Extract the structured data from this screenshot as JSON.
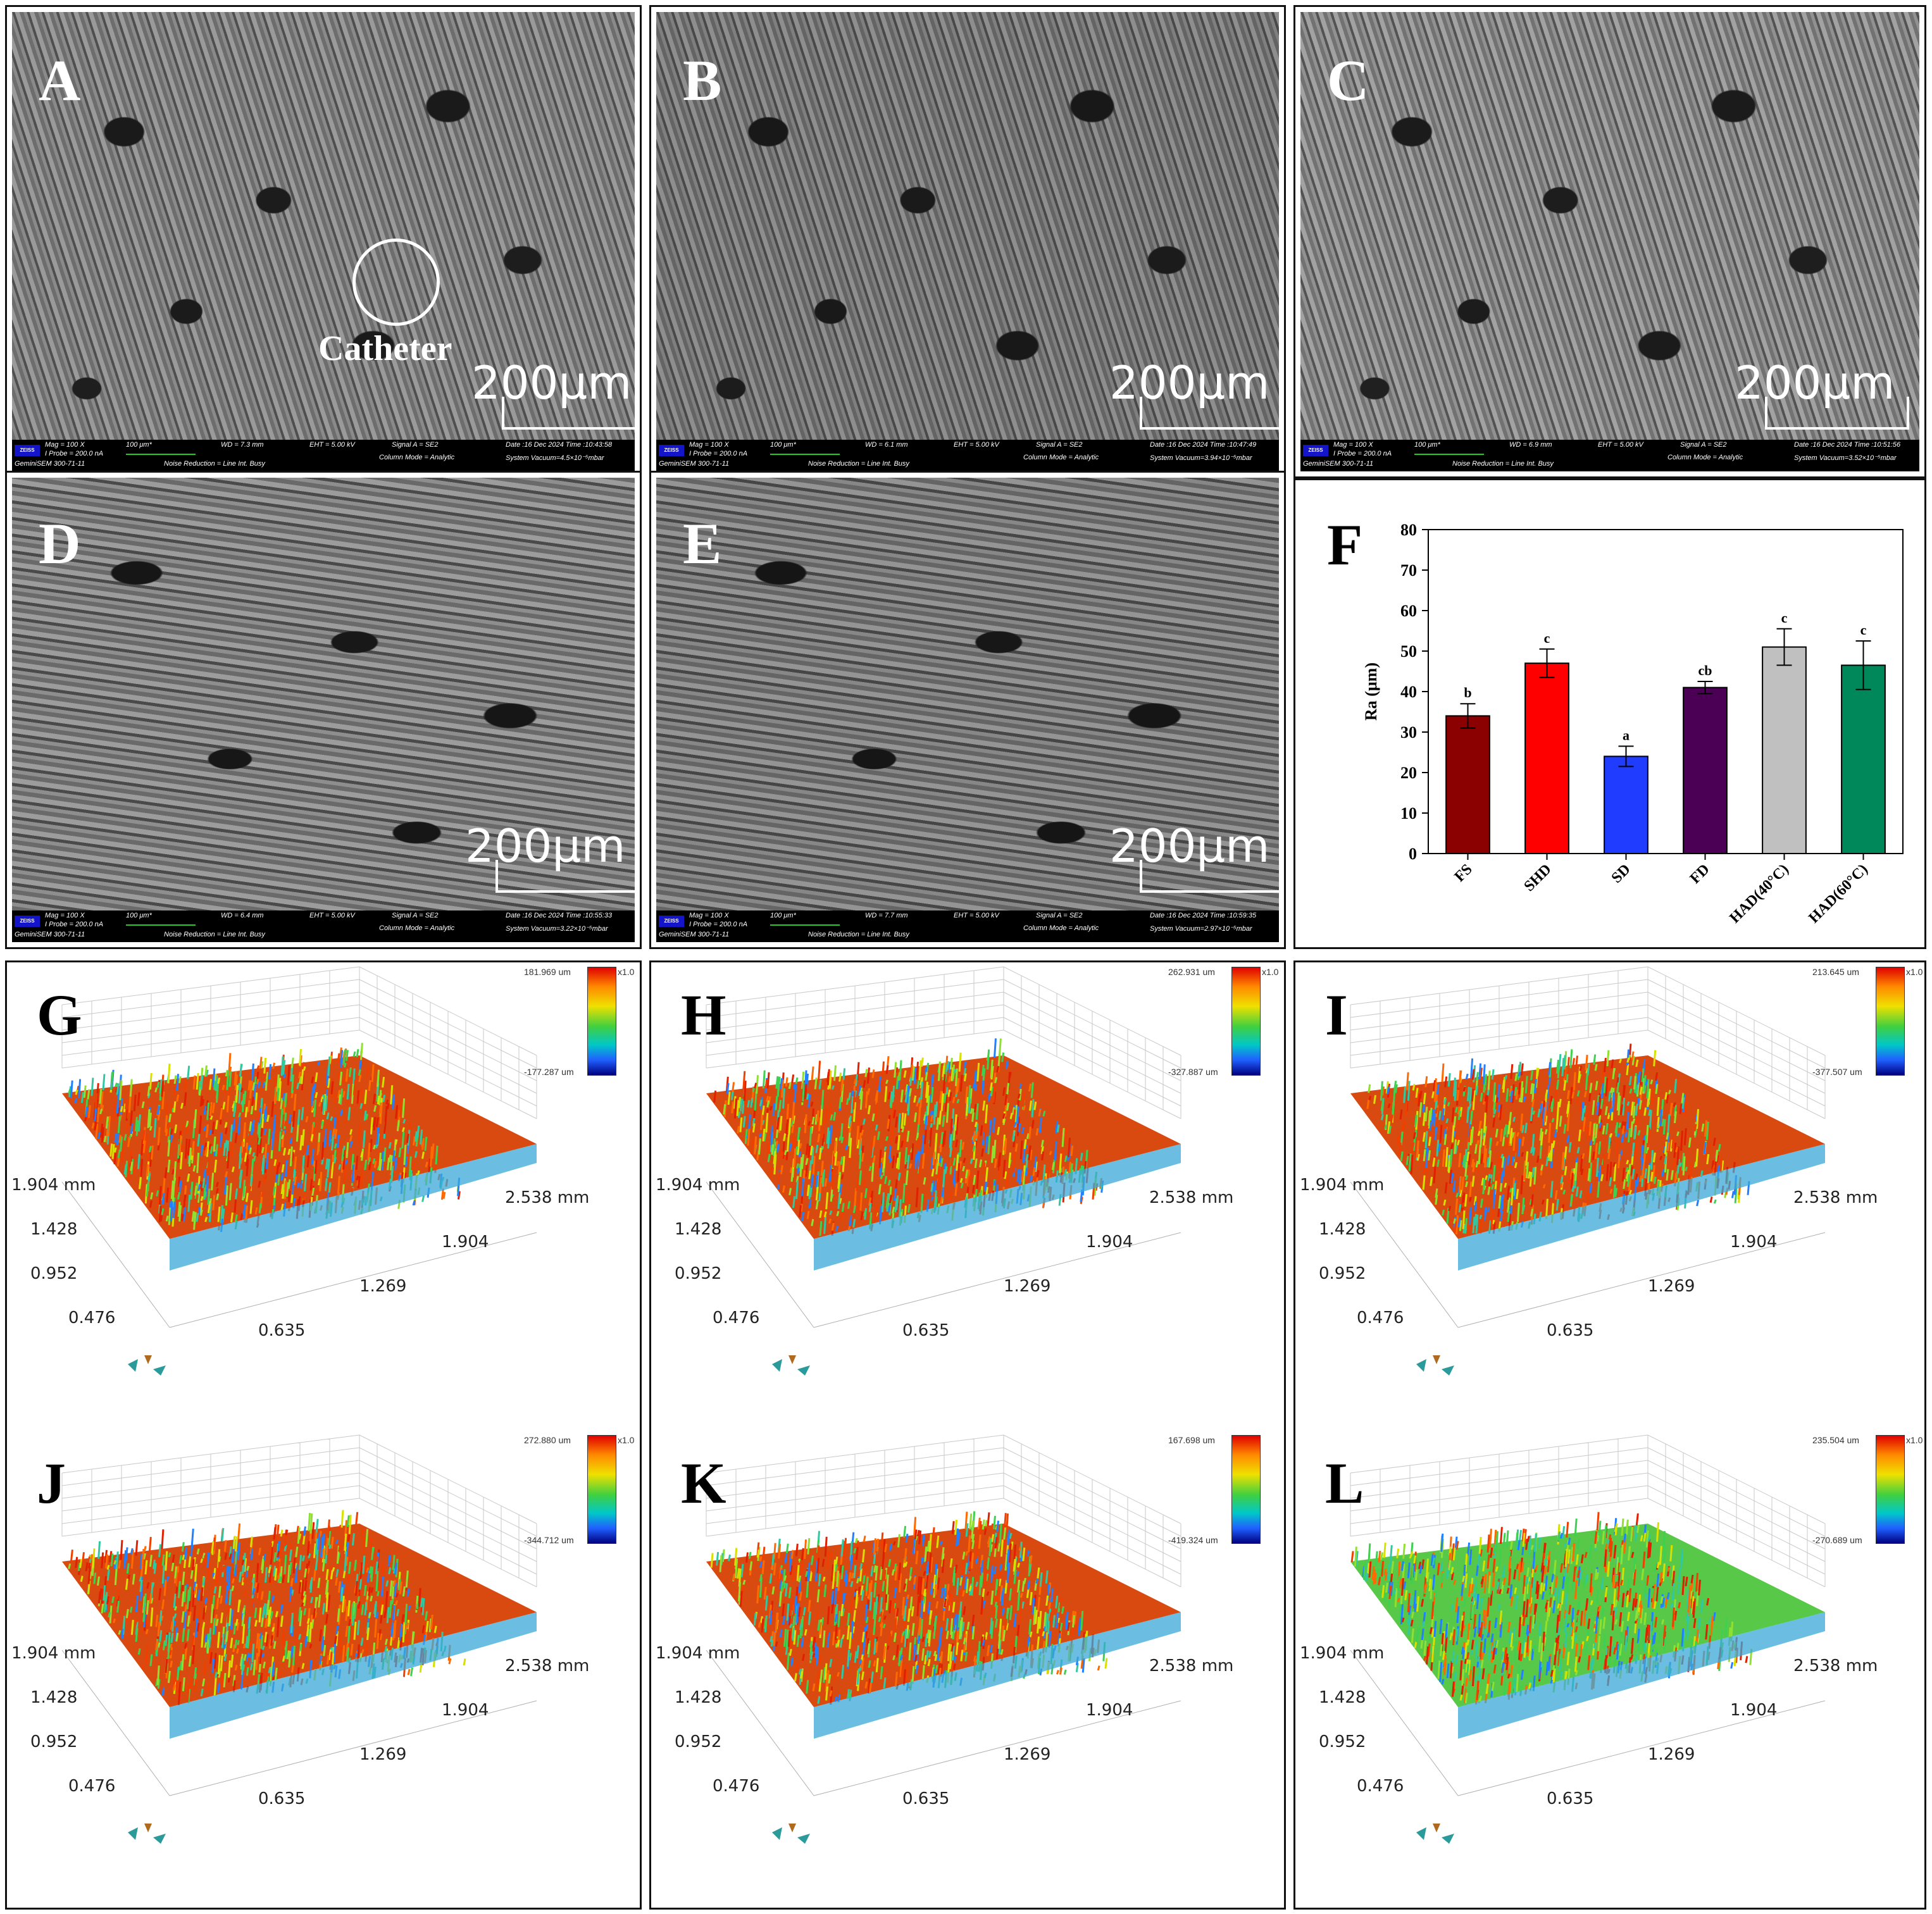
{
  "panels": {
    "A": {
      "label": "A",
      "scale": "200μm",
      "catheter": "Catheter",
      "meta": {
        "mag": "Mag =  100 X",
        "probe": "I Probe =  200.0 nA",
        "um": "100 μm*",
        "wd": "WD =  7.3 mm",
        "eht": "EHT =  5.00 kV",
        "signal": "Signal A = SE2",
        "date": "Date :16 Dec 2024  Time :10:43:58",
        "model": "GeminiSEM 300-71-11",
        "noise": "Noise Reduction = Line Int. Busy",
        "column": "Column Mode = Analytic",
        "vacuum": "System Vacuum=4.5×10⁻⁵mbar"
      }
    },
    "B": {
      "label": "B",
      "scale": "200μm",
      "meta": {
        "mag": "Mag =  100 X",
        "probe": "I Probe =  200.0 nA",
        "um": "100 μm*",
        "wd": "WD =  6.1 mm",
        "eht": "EHT =  5.00 kV",
        "signal": "Signal A = SE2",
        "date": "Date :16 Dec 2024  Time :10:47:49",
        "model": "GeminiSEM 300-71-11",
        "noise": "Noise Reduction = Line Int. Busy",
        "column": "Column Mode = Analytic",
        "vacuum": "System Vacuum=3.94×10⁻⁵mbar"
      }
    },
    "C": {
      "label": "C",
      "scale": "200μm",
      "meta": {
        "mag": "Mag =  100 X",
        "probe": "I Probe =  200.0 nA",
        "um": "100 μm*",
        "wd": "WD =  6.9 mm",
        "eht": "EHT =  5.00 kV",
        "signal": "Signal A = SE2",
        "date": "Date :16 Dec 2024  Time :10:51:56",
        "model": "GeminiSEM 300-71-11",
        "noise": "Noise Reduction = Line Int. Busy",
        "column": "Column Mode = Analytic",
        "vacuum": "System Vacuum=3.52×10⁻⁵mbar"
      }
    },
    "D": {
      "label": "D",
      "scale": "200μm",
      "meta": {
        "mag": "Mag =  100 X",
        "probe": "I Probe =  200.0 nA",
        "um": "100 μm*",
        "wd": "WD =  6.4 mm",
        "eht": "EHT =  5.00 kV",
        "signal": "Signal A = SE2",
        "date": "Date :16 Dec 2024  Time :10:55:33",
        "model": "GeminiSEM 300-71-11",
        "noise": "Noise Reduction = Line Int. Busy",
        "column": "Column Mode = Analytic",
        "vacuum": "System Vacuum=3.22×10⁻⁵mbar"
      }
    },
    "E": {
      "label": "E",
      "scale": "200μm",
      "meta": {
        "mag": "Mag =  100 X",
        "probe": "I Probe =  200.0 nA",
        "um": "100 μm*",
        "wd": "WD =  7.7 mm",
        "eht": "EHT =  5.00 kV",
        "signal": "Signal A = SE2",
        "date": "Date :16 Dec 2024  Time :10:59:35",
        "model": "GeminiSEM 300-71-11",
        "noise": "Noise Reduction = Line Int. Busy",
        "column": "Column Mode = Analytic",
        "vacuum": "System Vacuum=2.97×10⁻⁵mbar"
      }
    },
    "F": {
      "label": "F"
    },
    "zeiss": "ZEISS"
  },
  "chart_data": {
    "type": "bar",
    "categories": [
      "FS",
      "SHD",
      "SD",
      "FD",
      "HAD(40°C)",
      "HAD(60°C)"
    ],
    "values": [
      34,
      47,
      24,
      41,
      51,
      46.5
    ],
    "errors": [
      3,
      3.5,
      2.5,
      1.5,
      4.5,
      6
    ],
    "letters": [
      "b",
      "c",
      "a",
      "cb",
      "c",
      "c"
    ],
    "colors": [
      "#8b0000",
      "#ff0000",
      "#1f3cff",
      "#4b0055",
      "#c0c0c0",
      "#00875a"
    ],
    "ylabel": "Ra (μm)",
    "ylim": [
      0,
      80
    ],
    "yticks": [
      0,
      10,
      20,
      30,
      40,
      50,
      60,
      70,
      80
    ]
  },
  "surfaces": {
    "G": {
      "label": "G",
      "max": "181.969 um",
      "min": "-177.287 um",
      "scale": "x1.0"
    },
    "H": {
      "label": "H",
      "max": "262.931 um",
      "min": "-327.887 um",
      "scale": "x1.0"
    },
    "I": {
      "label": "I",
      "max": "213.645 um",
      "min": "-377.507 um",
      "scale": "x1.0"
    },
    "J": {
      "label": "J",
      "max": "272.880 um",
      "min": "-344.712 um",
      "scale": "x1.0"
    },
    "K": {
      "label": "K",
      "max": "167.698 um",
      "min": "-419.324 um",
      "scale": ""
    },
    "L": {
      "label": "L",
      "max": "235.504 um",
      "min": "-270.689 um",
      "scale": "x1.0"
    },
    "axis_y": [
      "1.904 mm",
      "1.428",
      "0.952",
      "0.476"
    ],
    "axis_x": [
      "2.538 mm",
      "1.904",
      "1.269",
      "0.635"
    ]
  }
}
